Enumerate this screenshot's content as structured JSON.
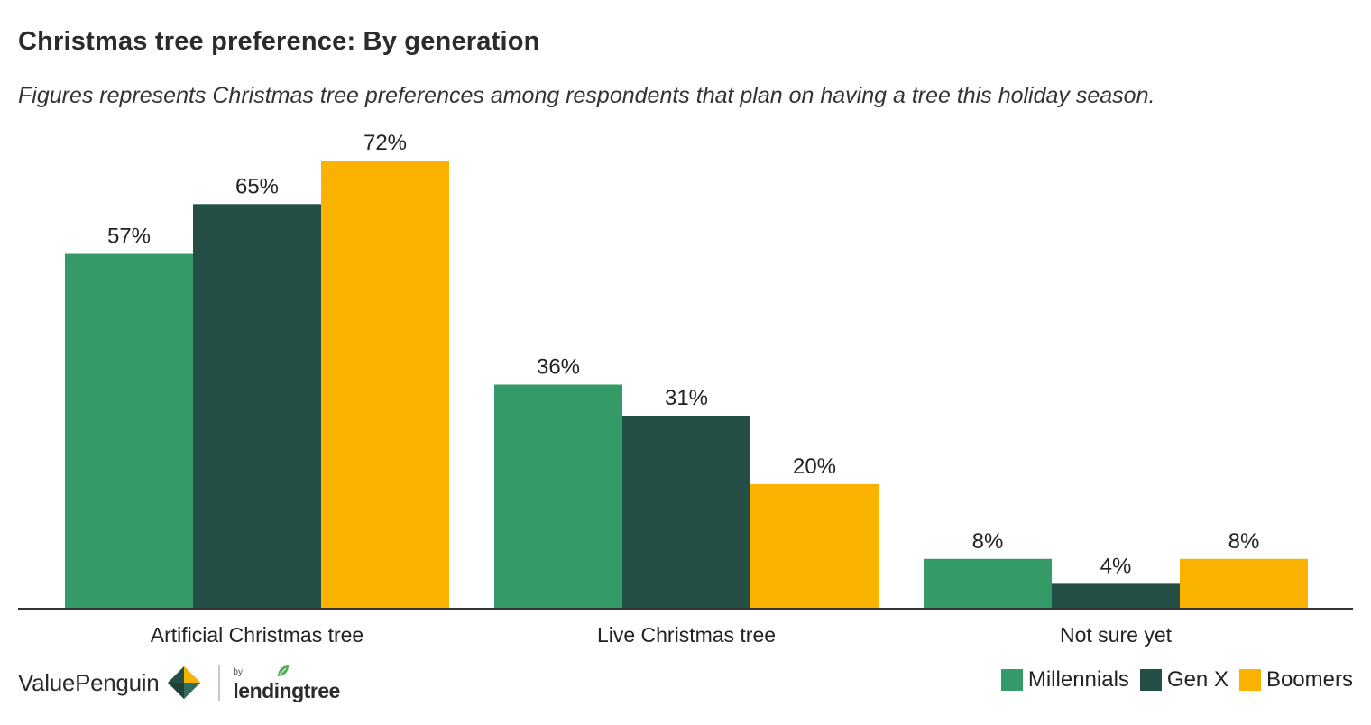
{
  "header": {
    "title": "Christmas tree preference: By generation",
    "subtitle": "Figures represents Christmas tree preferences among respondents that plan on having a tree this holiday season."
  },
  "branding": {
    "valuepenguin": "ValuePenguin",
    "by": "by",
    "lendingtree": "lendingtree"
  },
  "colors": {
    "millennials": "#349a68",
    "genx": "#234f47",
    "boomers": "#f9b200",
    "axis": "#333333"
  },
  "chart_data": {
    "type": "bar",
    "categories": [
      "Artificial Christmas tree",
      "Live Christmas tree",
      "Not sure yet"
    ],
    "series": [
      {
        "name": "Millennials",
        "values": [
          57,
          36,
          8
        ],
        "labels": [
          "57%",
          "36%",
          "8%"
        ]
      },
      {
        "name": "Gen X",
        "values": [
          65,
          31,
          4
        ],
        "labels": [
          "65%",
          "31%",
          "4%"
        ]
      },
      {
        "name": "Boomers",
        "values": [
          72,
          20,
          8
        ],
        "labels": [
          "72%",
          "20%",
          "8%"
        ]
      }
    ],
    "ylim": [
      0,
      72
    ],
    "grid": false,
    "legend": "bottom-right"
  }
}
